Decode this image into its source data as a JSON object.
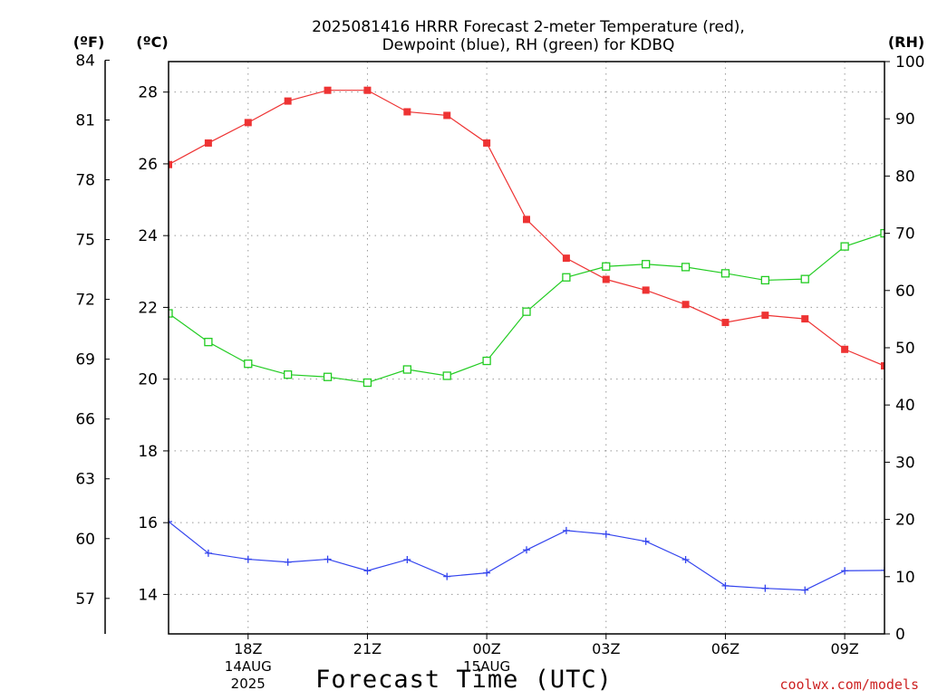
{
  "chart_data": {
    "type": "line",
    "title_line1": "2025081416 HRRR Forecast 2-meter Temperature (red),",
    "title_line2": "Dewpoint (blue), RH (green) for KDBQ",
    "xlabel": "Forecast Time (UTC)",
    "credit": "coolwx.com/models",
    "unit_f": "(ºF)",
    "unit_c": "(ºC)",
    "unit_rh": "(RH)",
    "x_hours": [
      16,
      17,
      18,
      19,
      20,
      21,
      22,
      23,
      24,
      25,
      26,
      27,
      28,
      29,
      30,
      31,
      32,
      33,
      34
    ],
    "xlim": [
      16,
      34
    ],
    "x_ticks": [
      {
        "hour": 18,
        "label": "18Z",
        "date": "14AUG",
        "year": "2025"
      },
      {
        "hour": 21,
        "label": "21Z",
        "date": "",
        "year": ""
      },
      {
        "hour": 24,
        "label": "00Z",
        "date": "15AUG",
        "year": ""
      },
      {
        "hour": 27,
        "label": "03Z",
        "date": "",
        "year": ""
      },
      {
        "hour": 30,
        "label": "06Z",
        "date": "",
        "year": ""
      },
      {
        "hour": 33,
        "label": "09Z",
        "date": "",
        "year": ""
      }
    ],
    "ylim_c": [
      12.9,
      28.85
    ],
    "yticks_c": [
      14,
      16,
      18,
      20,
      22,
      24,
      26,
      28
    ],
    "yticks_f": [
      57,
      60,
      63,
      66,
      69,
      72,
      75,
      78,
      81,
      84
    ],
    "ylim_rh": [
      0,
      100
    ],
    "yticks_rh": [
      0,
      10,
      20,
      30,
      40,
      50,
      60,
      70,
      80,
      90,
      100
    ],
    "grid": true,
    "colors": {
      "temperature": "#ee3333",
      "dewpoint": "#3344ee",
      "rh": "#22cc22",
      "credit": "#cc2222"
    },
    "series": [
      {
        "key": "temperature",
        "axis": "c",
        "marker": "filled-square",
        "values": [
          25.98,
          26.58,
          27.15,
          27.75,
          28.05,
          28.05,
          27.45,
          27.35,
          26.58,
          24.45,
          23.37,
          22.78,
          22.48,
          22.08,
          21.58,
          21.78,
          21.68,
          20.83,
          20.37
        ]
      },
      {
        "key": "dewpoint",
        "axis": "c",
        "marker": "plus",
        "values": [
          16.03,
          15.15,
          14.98,
          14.9,
          14.98,
          14.66,
          14.97,
          14.5,
          14.6,
          15.24,
          15.78,
          15.68,
          15.48,
          14.97,
          14.24,
          14.17,
          14.12,
          14.66,
          14.67
        ]
      },
      {
        "key": "rh",
        "axis": "rh",
        "marker": "open-square",
        "values": [
          56,
          51,
          47.2,
          45.3,
          44.9,
          43.9,
          46.2,
          45.1,
          47.7,
          56.3,
          62.3,
          64.2,
          64.6,
          64.1,
          63,
          61.8,
          62,
          67.7,
          70
        ]
      }
    ]
  }
}
